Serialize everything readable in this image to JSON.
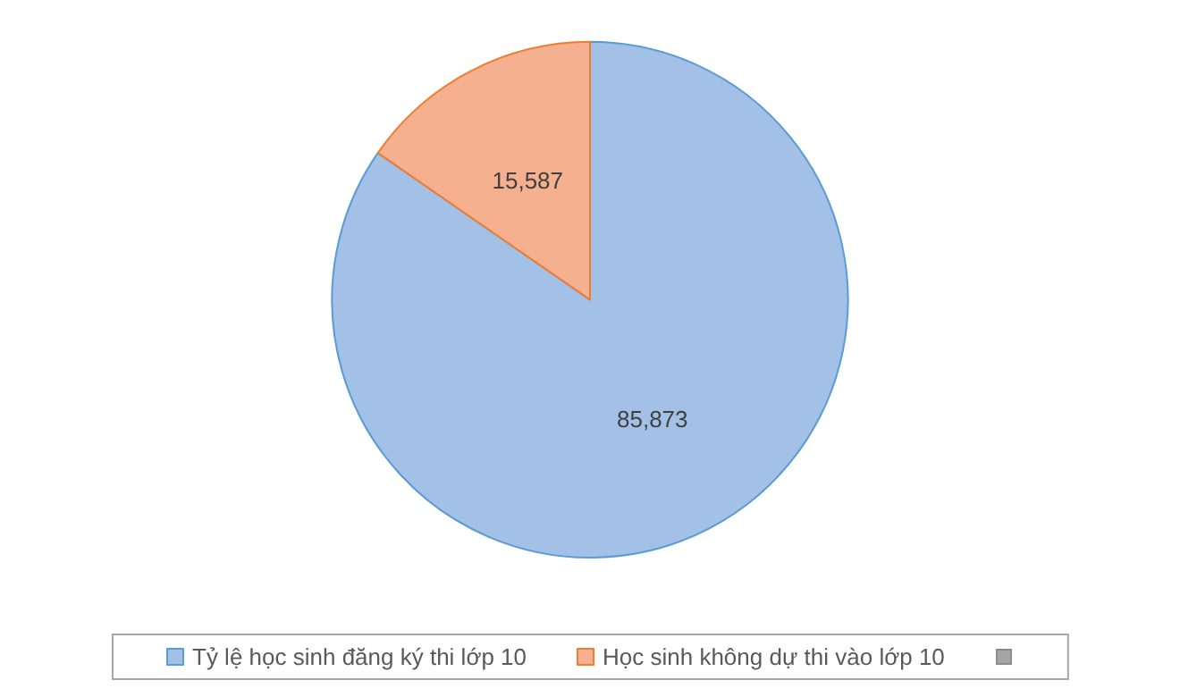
{
  "chart_data": {
    "type": "pie",
    "categories": [
      "Tỷ lệ học sinh đăng ký thi lớp 10",
      "Học sinh không dự thi vào lớp 10"
    ],
    "values": [
      85873,
      15587
    ],
    "value_labels": [
      "85,873",
      "15,587"
    ],
    "colors": [
      "#a3c1e6",
      "#f5b08f"
    ],
    "legend": "bottom"
  }
}
